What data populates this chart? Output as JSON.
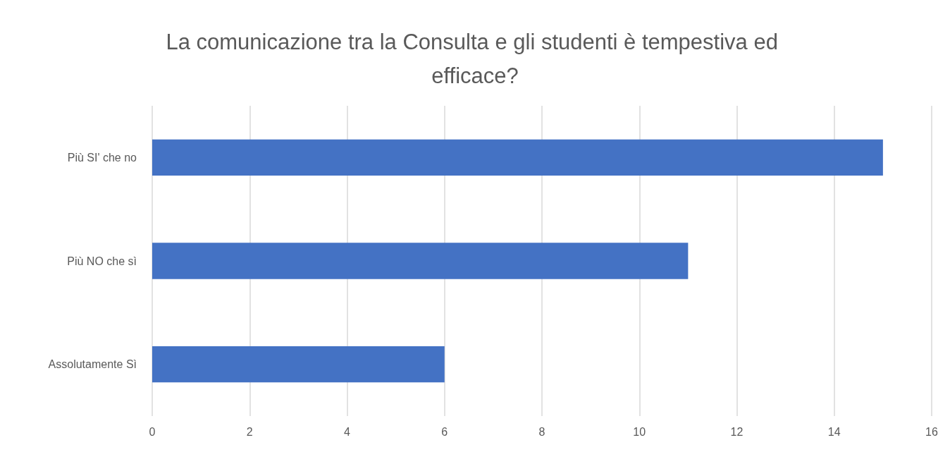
{
  "chart_data": {
    "type": "bar",
    "orientation": "horizontal",
    "title": "La comunicazione tra la Consulta e gli studenti è tempestiva ed efficace?",
    "categories": [
      "Più SI' che no",
      "Più NO che sì",
      "Assolutamente Sì"
    ],
    "values": [
      15,
      11,
      6
    ],
    "color": "#4472c4",
    "xlim": [
      0,
      16
    ],
    "xticks": [
      0,
      2,
      4,
      6,
      8,
      10,
      12,
      14,
      16
    ],
    "grid": "x"
  }
}
